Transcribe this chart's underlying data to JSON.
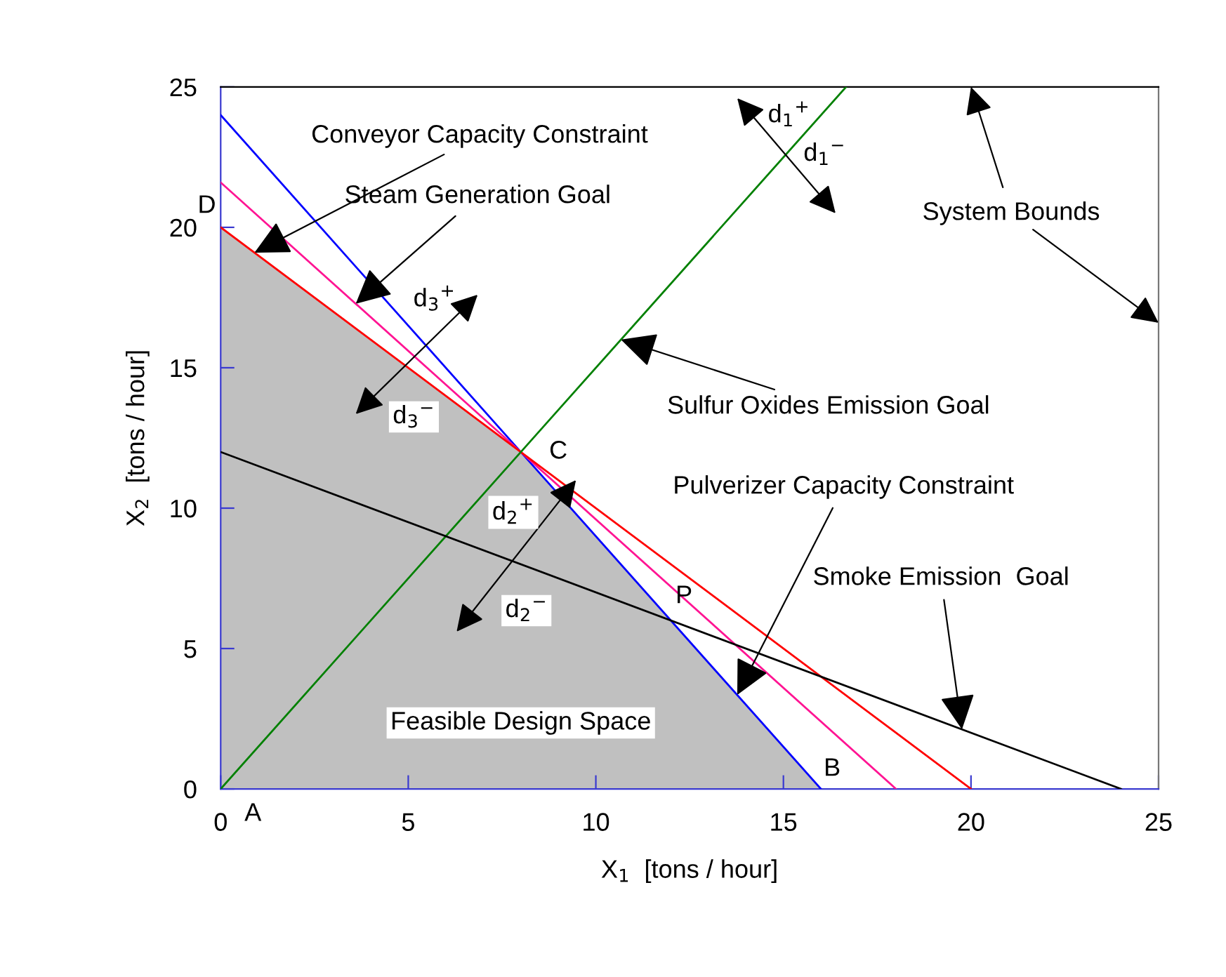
{
  "chart_data": {
    "type": "line",
    "xlabel": "X$_{1}$  [tons / hour]",
    "ylabel": "X$_{2}$  [tons / hour]",
    "xlim": [
      0,
      25
    ],
    "ylim": [
      0,
      25
    ],
    "xticks": [
      0,
      5,
      10,
      15,
      20,
      25
    ],
    "yticks": [
      0,
      5,
      10,
      15,
      20,
      25
    ],
    "grid": false,
    "legend": false,
    "marker": "none",
    "line_style": "solid",
    "series": [
      {
        "type": "area",
        "color": "#c0c0c0",
        "x": [
          0,
          8,
          16
        ],
        "values": [
          20,
          12,
          0
        ]
      },
      {
        "color": "#0000ff",
        "x": [
          0,
          16
        ],
        "values": [
          24,
          0
        ]
      },
      {
        "color": "#ff1493",
        "x": [
          0,
          18
        ],
        "values": [
          21.6,
          0
        ]
      },
      {
        "color": "#ff0000",
        "x": [
          0,
          20
        ],
        "values": [
          20,
          0
        ]
      },
      {
        "color": "#008000",
        "x": [
          0,
          16.67
        ],
        "values": [
          0,
          25
        ]
      },
      {
        "color": "#000000",
        "x": [
          0,
          24
        ],
        "values": [
          12,
          0
        ]
      }
    ],
    "annotations": [
      {
        "text": "Conveyor Capacity Constraint",
        "x": 0.9,
        "y": 19.1
      },
      {
        "text": "Steam Generation Goal",
        "x": 3.6,
        "y": 17.28
      },
      {
        "text": "Sulfur Oxides Emission Goal",
        "x": 10.67,
        "y": 16
      },
      "System Bounds",
      {
        "text": "Pulverizer Capacity Constraint",
        "x": 13.77,
        "y": 3.35
      },
      {
        "text": "Smoke Emission  Goal",
        "x": 19.76,
        "y": 2.12
      },
      "Feasible Design Space",
      {
        "text": "D",
        "x": 0,
        "y": 20
      },
      {
        "text": "A",
        "x": 0,
        "y": 0
      },
      {
        "text": "B",
        "x": 16,
        "y": 0
      },
      {
        "text": "C",
        "x": 8,
        "y": 12
      },
      {
        "text": "P",
        "x": 12,
        "y": 6
      },
      "d$_{1}$$^{+}$",
      "d$_{1}$$^{−}$",
      "d$_{3}$$^{+}$",
      "d$_{3}$$^{−}$",
      "d$_{2}$$^{+}$",
      "d$_{2}$$^{−}$"
    ]
  }
}
